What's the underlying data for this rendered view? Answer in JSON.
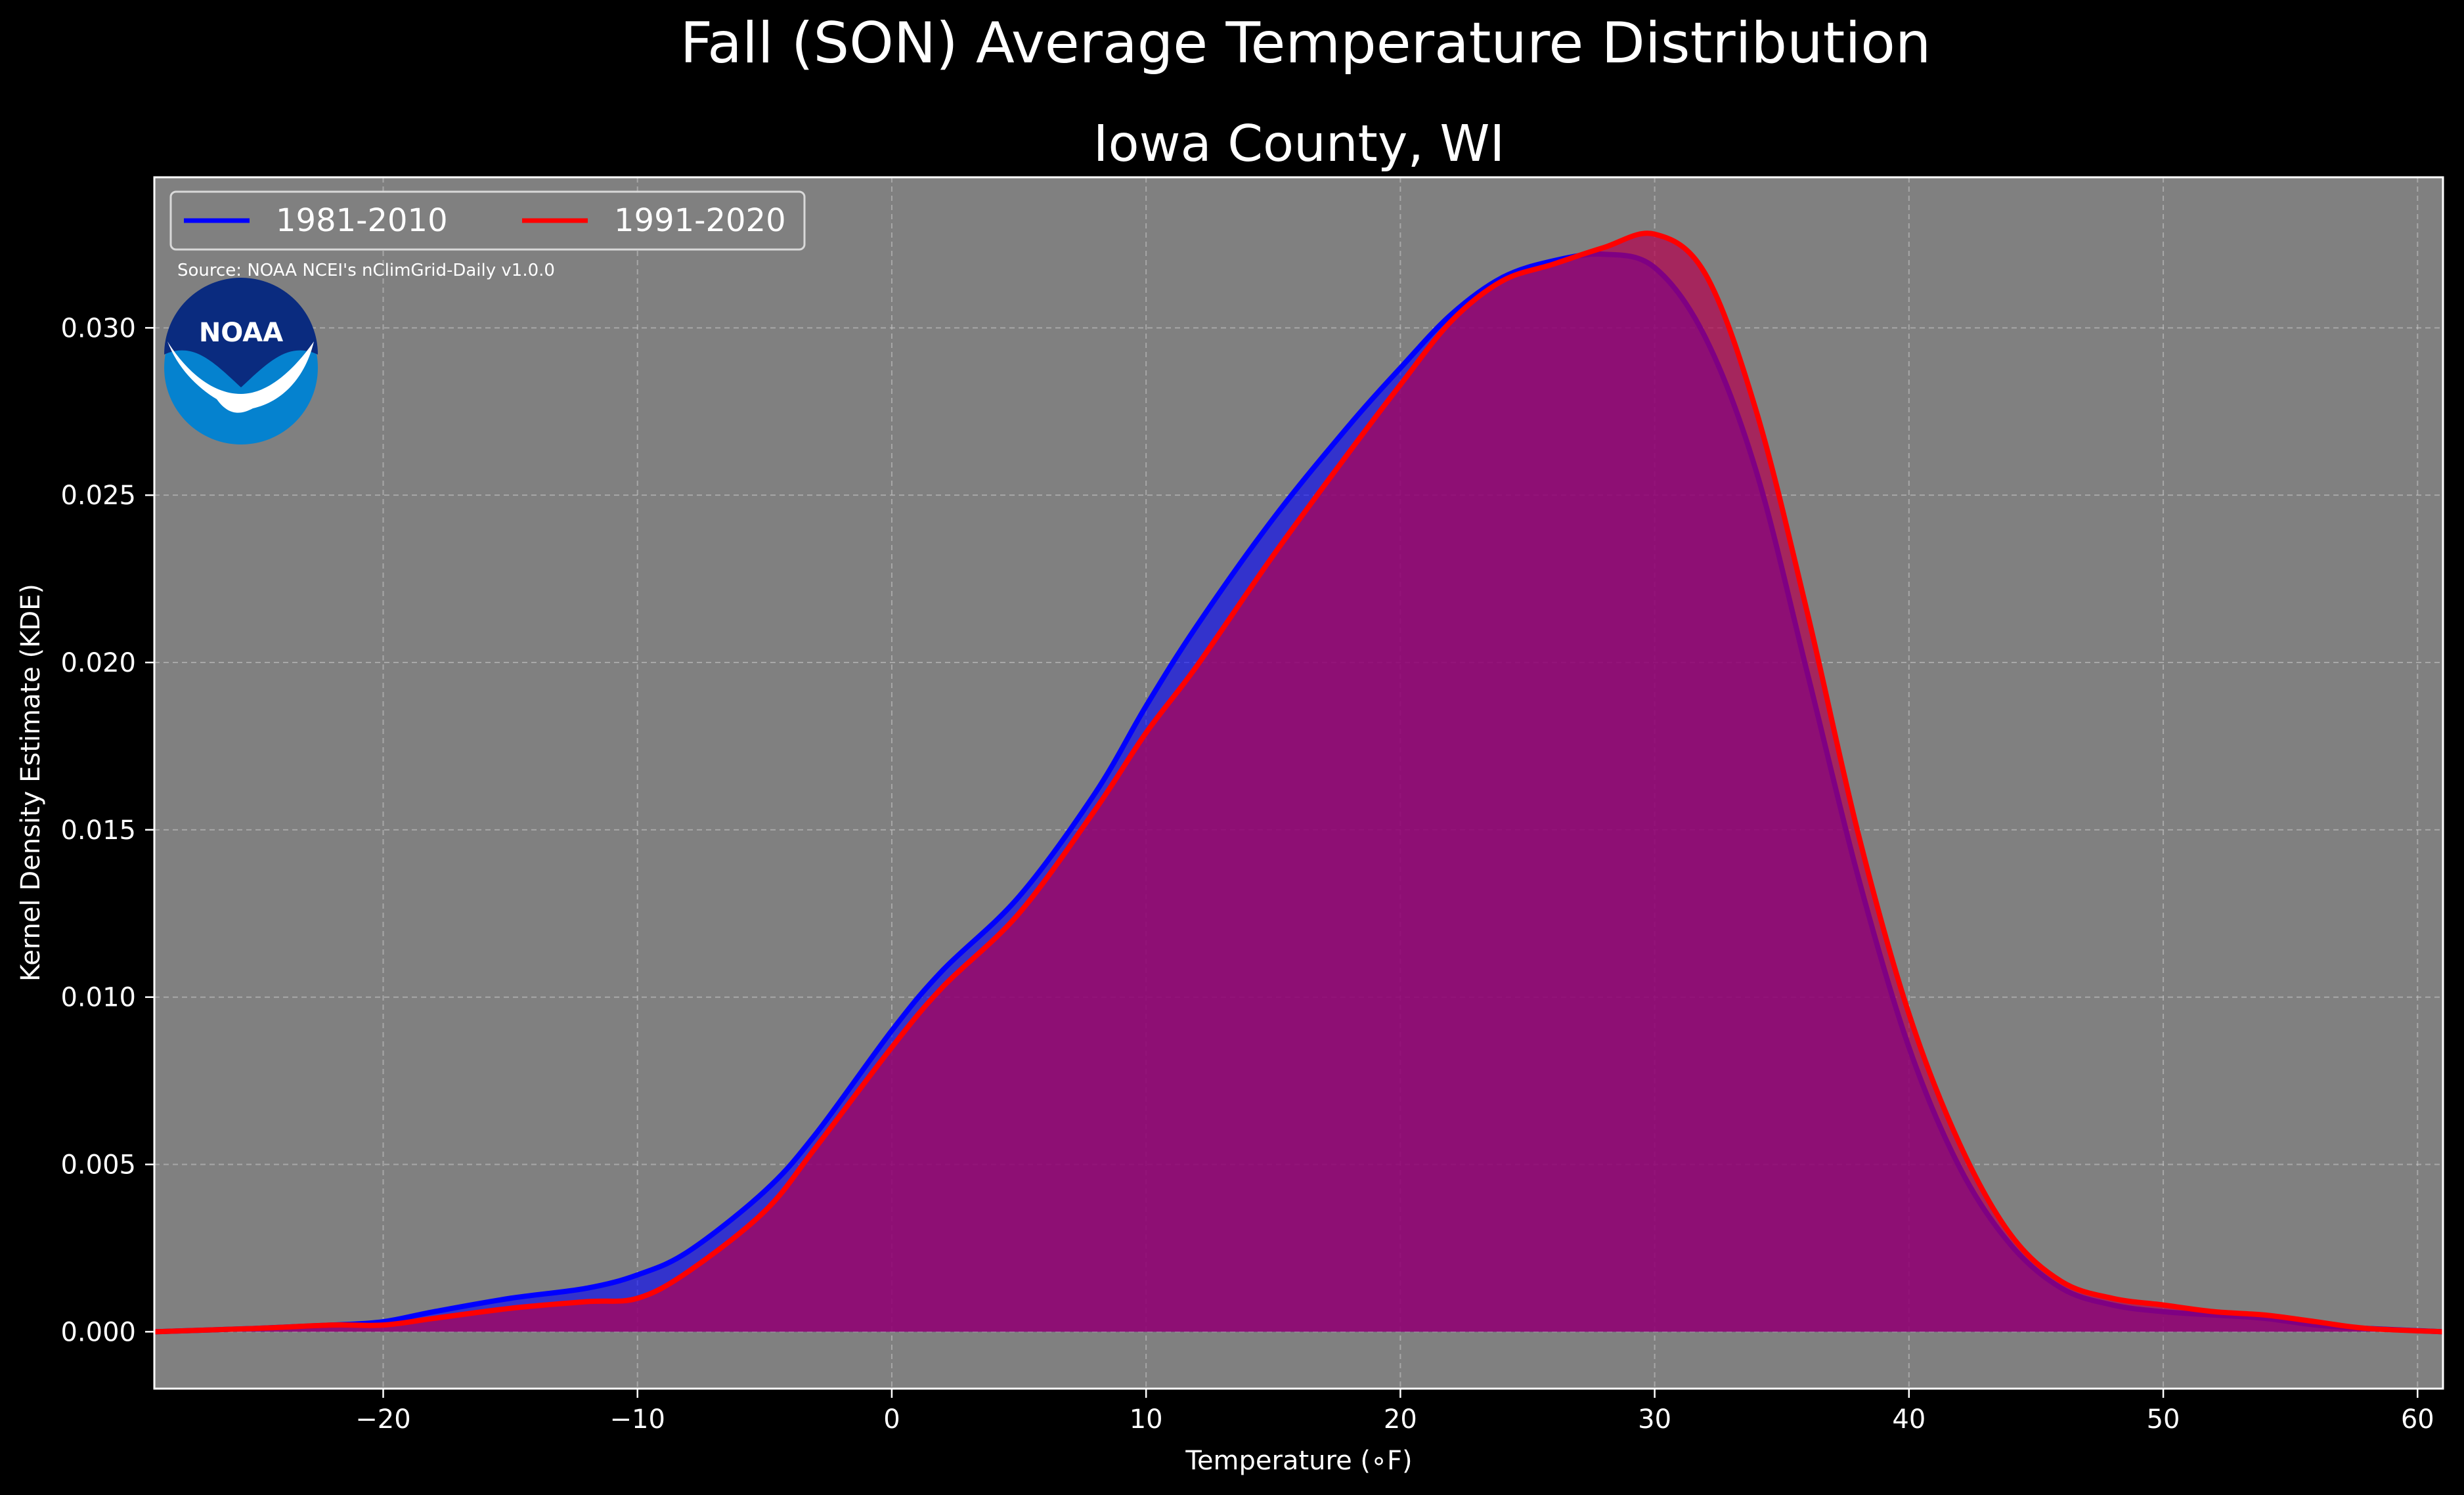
{
  "header": {
    "suptitle": "Fall (SON) Average Temperature Distribution",
    "subtitle": "Iowa County, WI"
  },
  "source_note": "Source: NOAA NCEI's nClimGrid-Daily v1.0.0",
  "logo": {
    "name": "noaa-logo",
    "text": "NOAA"
  },
  "colors": {
    "background": "#000000",
    "plot_background": "#808080",
    "series_1981": "#0000ff",
    "series_1991": "#ff0000",
    "fill_1981": "#0000ff",
    "fill_1991": "#b5004e"
  },
  "chart_data": {
    "type": "area",
    "xlabel": "Temperature (∘F)",
    "ylabel": "Kernel Density Estimate (KDE)",
    "xlim": [
      -29,
      61
    ],
    "ylim": [
      -0.0017,
      0.0345
    ],
    "x_ticks": [
      -20,
      -10,
      0,
      10,
      20,
      30,
      40,
      50,
      60
    ],
    "x_tick_labels": [
      "−20",
      "−10",
      "0",
      "10",
      "20",
      "30",
      "40",
      "50",
      "60"
    ],
    "y_ticks": [
      0,
      0.005,
      0.01,
      0.015,
      0.02,
      0.025,
      0.03
    ],
    "y_tick_labels": [
      "0.000",
      "0.005",
      "0.010",
      "0.015",
      "0.020",
      "0.025",
      "0.030"
    ],
    "grid": true,
    "legend_position": "top-left",
    "series": [
      {
        "name": "1981-2010",
        "color": "#0000ff",
        "x": [
          -29,
          -25,
          -22,
          -20,
          -18,
          -15,
          -12,
          -10,
          -8,
          -5,
          -3,
          0,
          2,
          5,
          8,
          10,
          12,
          15,
          18,
          20,
          22,
          24,
          26,
          28,
          30,
          32,
          34,
          36,
          38,
          40,
          42,
          44,
          46,
          48,
          50,
          52,
          54,
          56,
          58,
          61
        ],
        "values": [
          0,
          0.0001,
          0.0002,
          0.0003,
          0.0006,
          0.001,
          0.0013,
          0.0017,
          0.0024,
          0.0042,
          0.0059,
          0.009,
          0.0108,
          0.013,
          0.0161,
          0.0187,
          0.0211,
          0.0243,
          0.0271,
          0.0288,
          0.0304,
          0.0315,
          0.032,
          0.0322,
          0.0318,
          0.0297,
          0.0257,
          0.0197,
          0.0136,
          0.0085,
          0.0049,
          0.0026,
          0.0013,
          0.0008,
          0.0006,
          0.0005,
          0.0004,
          0.0002,
          0.0001,
          0
        ]
      },
      {
        "name": "1991-2020",
        "color": "#ff0000",
        "x": [
          -29,
          -25,
          -22,
          -20,
          -18,
          -15,
          -12,
          -10,
          -8,
          -5,
          -3,
          0,
          2,
          5,
          8,
          10,
          12,
          15,
          18,
          20,
          22,
          24,
          26,
          28,
          30,
          32,
          34,
          36,
          38,
          40,
          42,
          44,
          46,
          48,
          50,
          52,
          54,
          56,
          58,
          61
        ],
        "values": [
          0,
          0.0001,
          0.0002,
          0.0002,
          0.0004,
          0.0007,
          0.0009,
          0.001,
          0.0018,
          0.0036,
          0.0055,
          0.0085,
          0.0103,
          0.0125,
          0.0156,
          0.0179,
          0.0199,
          0.0232,
          0.0263,
          0.0283,
          0.0302,
          0.0314,
          0.0319,
          0.0324,
          0.0328,
          0.0316,
          0.0275,
          0.0215,
          0.0149,
          0.0095,
          0.0056,
          0.0029,
          0.0015,
          0.001,
          0.0008,
          0.0006,
          0.0005,
          0.0003,
          0.0001,
          0
        ]
      }
    ]
  }
}
